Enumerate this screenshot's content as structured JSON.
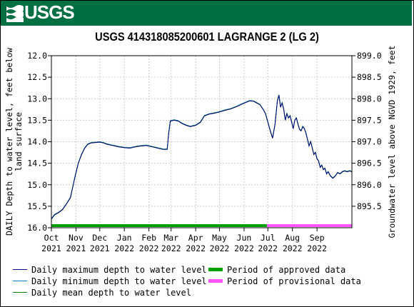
{
  "banner": {
    "logo_text": "USGS",
    "color": "#006f41"
  },
  "chart_data": {
    "type": "line",
    "title": "USGS 414318085200601 LAGRANGE 2 (LG 2)",
    "ylabel_left": "DAILY Depth to water level, feet below land surface",
    "ylabel_right": "Groundwater level above NGVD 1929, feet",
    "y_left_range": [
      12.0,
      16.0
    ],
    "y_left_inverted": true,
    "y_left_ticks": [
      "12.0",
      "12.5",
      "13.0",
      "13.5",
      "14.0",
      "14.5",
      "15.0",
      "15.5",
      "16.0"
    ],
    "y_right_range": [
      899.0,
      895.0
    ],
    "y_right_ticks": [
      "899.0",
      "898.5",
      "898.0",
      "897.5",
      "897.0",
      "896.5",
      "896.0",
      "895.5"
    ],
    "x_range": [
      "2021-10-01",
      "2022-10-15"
    ],
    "x_ticks": [
      {
        "date": "2021-10-01",
        "month": "Oct",
        "year": "2021"
      },
      {
        "date": "2021-11-01",
        "month": "Nov",
        "year": "2021"
      },
      {
        "date": "2021-12-01",
        "month": "Dec",
        "year": "2021"
      },
      {
        "date": "2022-01-01",
        "month": "Jan",
        "year": "2022"
      },
      {
        "date": "2022-02-01",
        "month": "Feb",
        "year": "2022"
      },
      {
        "date": "2022-03-01",
        "month": "Mar",
        "year": "2022"
      },
      {
        "date": "2022-04-01",
        "month": "Apr",
        "year": "2022"
      },
      {
        "date": "2022-05-01",
        "month": "May",
        "year": "2022"
      },
      {
        "date": "2022-06-01",
        "month": "Jun",
        "year": "2022"
      },
      {
        "date": "2022-07-01",
        "month": "Jul",
        "year": "2022"
      },
      {
        "date": "2022-08-01",
        "month": "Aug",
        "year": "2022"
      },
      {
        "date": "2022-09-01",
        "month": "Sep",
        "year": "2022"
      }
    ],
    "grid": true,
    "series": [
      {
        "name": "Daily maximum depth to water level",
        "color": "#000080",
        "x": [
          "2021-10-01",
          "2021-10-05",
          "2021-10-10",
          "2021-10-15",
          "2021-10-20",
          "2021-10-25",
          "2021-10-28",
          "2021-10-31",
          "2021-11-04",
          "2021-11-08",
          "2021-11-12",
          "2021-11-16",
          "2021-11-20",
          "2021-11-25",
          "2021-12-01",
          "2021-12-06",
          "2021-12-10",
          "2021-12-15",
          "2021-12-20",
          "2021-12-25",
          "2022-01-01",
          "2022-01-08",
          "2022-01-15",
          "2022-01-22",
          "2022-01-29",
          "2022-02-05",
          "2022-02-12",
          "2022-02-19",
          "2022-02-24",
          "2022-02-26",
          "2022-02-28",
          "2022-03-05",
          "2022-03-10",
          "2022-03-15",
          "2022-03-20",
          "2022-03-25",
          "2022-04-01",
          "2022-04-07",
          "2022-04-12",
          "2022-04-18",
          "2022-04-24",
          "2022-05-01",
          "2022-05-08",
          "2022-05-15",
          "2022-05-22",
          "2022-05-29",
          "2022-06-03",
          "2022-06-08",
          "2022-06-13",
          "2022-06-17",
          "2022-06-21",
          "2022-06-25",
          "2022-06-28",
          "2022-07-01",
          "2022-07-04",
          "2022-07-07",
          "2022-07-10",
          "2022-07-13",
          "2022-07-15",
          "2022-07-17",
          "2022-07-19",
          "2022-07-21",
          "2022-07-23",
          "2022-07-25",
          "2022-07-27",
          "2022-07-29",
          "2022-07-31",
          "2022-08-02",
          "2022-08-04",
          "2022-08-06",
          "2022-08-08",
          "2022-08-10",
          "2022-08-12",
          "2022-08-14",
          "2022-08-16",
          "2022-08-18",
          "2022-08-20",
          "2022-08-22",
          "2022-08-24",
          "2022-08-26",
          "2022-08-28",
          "2022-08-30",
          "2022-09-01",
          "2022-09-03",
          "2022-09-05",
          "2022-09-07",
          "2022-09-09",
          "2022-09-11",
          "2022-09-13",
          "2022-09-15",
          "2022-09-18",
          "2022-09-21",
          "2022-09-24",
          "2022-09-27",
          "2022-09-30",
          "2022-10-03",
          "2022-10-06",
          "2022-10-09",
          "2022-10-12",
          "2022-10-15"
        ],
        "values": [
          15.8,
          15.7,
          15.65,
          15.58,
          15.45,
          15.3,
          15.05,
          14.8,
          14.5,
          14.3,
          14.15,
          14.06,
          14.03,
          14.02,
          14.01,
          14.03,
          14.06,
          14.08,
          14.1,
          14.12,
          14.14,
          14.15,
          14.12,
          14.1,
          14.09,
          14.12,
          14.15,
          14.18,
          14.18,
          13.8,
          13.52,
          13.5,
          13.52,
          13.58,
          13.62,
          13.65,
          13.62,
          13.55,
          13.4,
          13.36,
          13.34,
          13.31,
          13.27,
          13.24,
          13.19,
          13.13,
          13.09,
          13.05,
          13.06,
          13.1,
          13.14,
          13.25,
          13.35,
          13.55,
          13.75,
          13.92,
          13.6,
          13.05,
          12.92,
          13.2,
          13.1,
          13.25,
          13.5,
          13.35,
          13.45,
          13.4,
          13.55,
          13.7,
          13.5,
          13.45,
          13.6,
          13.72,
          13.75,
          13.65,
          13.7,
          13.8,
          13.95,
          14.1,
          14.0,
          14.15,
          14.3,
          14.25,
          14.4,
          14.45,
          14.6,
          14.55,
          14.65,
          14.62,
          14.75,
          14.7,
          14.8,
          14.85,
          14.8,
          14.72,
          14.75,
          14.7,
          14.68,
          14.7,
          14.68,
          14.7
        ]
      },
      {
        "name": "Daily minimum depth to water level",
        "color": "#0080c0",
        "values_ref": "same as maximum, offset -0.01 ft"
      },
      {
        "name": "Daily mean depth to water level",
        "color": "#008000",
        "values_ref": "same as maximum, offset -0.005 ft"
      }
    ],
    "periods": [
      {
        "name": "Period of approved data",
        "color": "#00a000",
        "start": "2021-10-01",
        "end": "2022-06-30"
      },
      {
        "name": "Period of provisional data",
        "color": "#ff55ff",
        "start": "2022-06-30",
        "end": "2022-10-15"
      }
    ]
  },
  "legend": {
    "items": [
      {
        "label": "Daily maximum depth to water level",
        "color": "#000080",
        "kind": "line"
      },
      {
        "label": "Daily minimum depth to water level",
        "color": "#0080c0",
        "kind": "line"
      },
      {
        "label": "Daily mean depth to water level",
        "color": "#008000",
        "kind": "line"
      },
      {
        "label": "Period of approved data",
        "color": "#00a000",
        "kind": "bar"
      },
      {
        "label": "Period of provisional data",
        "color": "#ff55ff",
        "kind": "bar"
      }
    ]
  }
}
